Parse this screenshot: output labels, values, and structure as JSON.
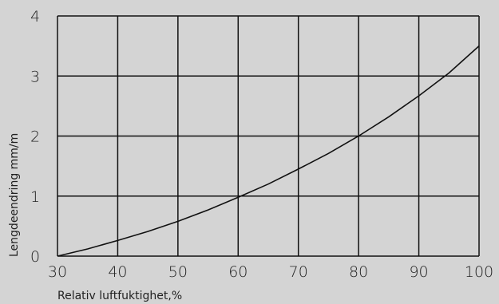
{
  "chart_data": {
    "type": "line",
    "title": "",
    "xlabel": "Relativ luftfuktighet,%",
    "ylabel": "Lengdeendring mm/m",
    "xlim": [
      30,
      100
    ],
    "ylim": [
      0,
      4
    ],
    "x_ticks": [
      "30",
      "40",
      "50",
      "60",
      "70",
      "80",
      "90",
      "100"
    ],
    "y_ticks": [
      "0",
      "1",
      "2",
      "3",
      "4"
    ],
    "grid": true,
    "legend": "none",
    "series": [
      {
        "values_x": [
          30,
          35,
          40,
          45,
          50,
          55,
          60,
          65,
          70,
          75,
          80,
          85,
          90,
          95,
          100
        ],
        "values_y": [
          0.0,
          0.12,
          0.26,
          0.41,
          0.58,
          0.77,
          0.98,
          1.2,
          1.45,
          1.71,
          2.0,
          2.32,
          2.67,
          3.05,
          3.5
        ],
        "color": "#111111"
      }
    ]
  }
}
